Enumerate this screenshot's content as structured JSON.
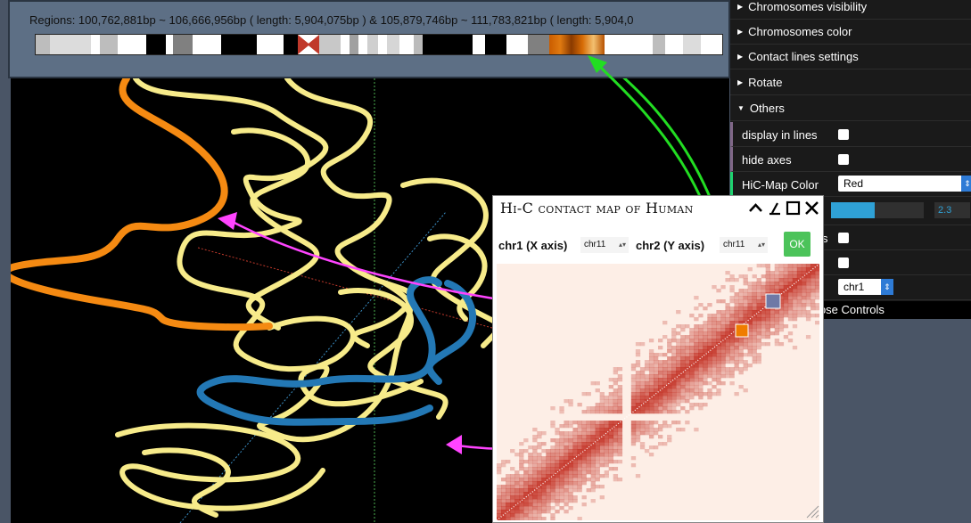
{
  "regions": {
    "text": "Regions: 100,762,881bp ~ 106,666,956bp ( length: 5,904,075bp ) & 105,879,746bp ~ 111,783,821bp ( length: 5,904,0"
  },
  "controls": {
    "folders": [
      {
        "label": "Chromosomes visibility"
      },
      {
        "label": "Chromosomes color"
      },
      {
        "label": "Contact lines settings"
      },
      {
        "label": "Rotate"
      },
      {
        "label": "Others"
      }
    ],
    "display_in_lines": "display in lines",
    "hide_axes": "hide axes",
    "hic_map_color_label": "HiC-Map Color",
    "hic_map_color_value": "Red",
    "slider_value": "2.3",
    "slider_fraction": 0.47,
    "partial_label": "s",
    "chr_select_value": "chr1",
    "close_controls": "lose Controls"
  },
  "hic": {
    "title": "Hi-C contact map of Human",
    "chr1_label": "chr1 (X axis)",
    "chr1_value": "chr11",
    "chr2_label": "chr2 (Y axis)",
    "chr2_value": "chr11",
    "ok": "OK"
  },
  "colors": {
    "highlight_orange": "#f07c00",
    "arrow_green": "#22dd22",
    "arrow_magenta": "#ff44ff",
    "heat_low": "#fdeee6",
    "heat_high": "#c0271a"
  }
}
